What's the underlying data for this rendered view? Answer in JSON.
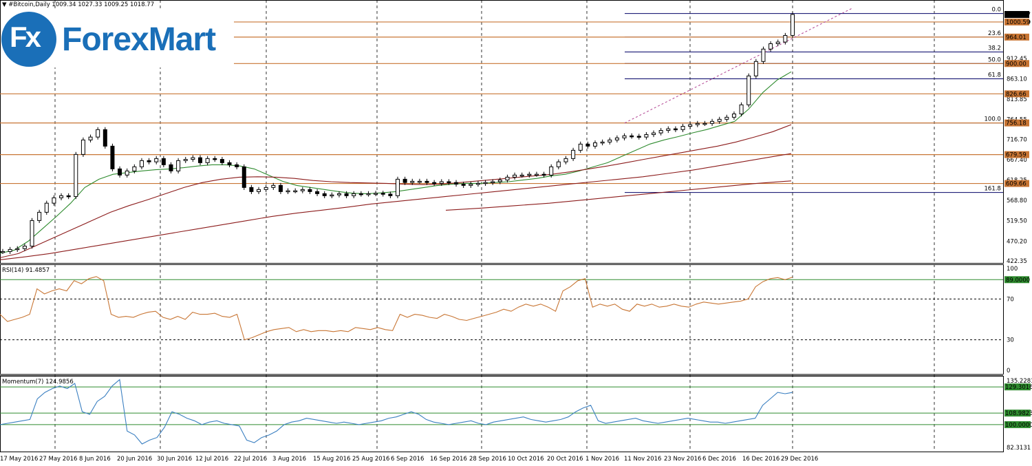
{
  "header": {
    "symbol": "#Bitcoin,Daily",
    "ohlc": "1009.34 1027.33 1009.25 1018.77"
  },
  "logo": {
    "fx": "Fx",
    "name": "ForexMart"
  },
  "chart_data": [
    {
      "type": "candlestick",
      "title": "#Bitcoin,Daily",
      "x_tick_labels": [
        "17 May 2016",
        "27 May 2016",
        "8 Jun 2016",
        "20 Jun 2016",
        "30 Jun 2016",
        "12 Jul 2016",
        "22 Jul 2016",
        "3 Aug 2016",
        "15 Aug 2016",
        "25 Aug 2016",
        "6 Sep 2016",
        "16 Sep 2016",
        "28 Sep 2016",
        "10 Oct 2016",
        "20 Oct 2016",
        "1 Nov 2016",
        "11 Nov 2016",
        "23 Nov 2016",
        "6 Dec 2016",
        "16 Dec 2016",
        "29 Dec 2016"
      ],
      "y_tick_labels": [
        "1018.77",
        "1000.59",
        "964.01",
        "912.45",
        "900.00",
        "863.10",
        "826.66",
        "813.85",
        "764.55",
        "756.18",
        "716.70",
        "679.59",
        "667.40",
        "618.25",
        "609.66",
        "568.80",
        "519.50",
        "470.20",
        "422.35"
      ],
      "ylim": [
        422.35,
        1035
      ],
      "close_values": [
        445,
        450,
        452,
        458,
        520,
        540,
        562,
        575,
        580,
        578,
        680,
        715,
        722,
        740,
        700,
        645,
        630,
        640,
        650,
        665,
        662,
        670,
        655,
        640,
        665,
        668,
        672,
        660,
        670,
        668,
        660,
        655,
        650,
        600,
        590,
        595,
        600,
        605,
        590,
        592,
        592,
        595,
        590,
        585,
        580,
        582,
        585,
        580,
        585,
        584,
        585,
        586,
        584,
        580,
        620,
        612,
        615,
        615,
        612,
        610,
        614,
        612,
        608,
        605,
        608,
        610,
        612,
        614,
        618,
        625,
        630,
        630,
        632,
        632,
        630,
        650,
        662,
        670,
        690,
        705,
        700,
        708,
        710,
        715,
        720,
        725,
        724,
        722,
        728,
        732,
        738,
        742,
        740,
        748,
        752,
        755,
        755,
        760,
        765,
        770,
        778,
        800,
        870,
        905,
        935,
        948,
        952,
        968,
        1018.77
      ],
      "moving_averages": [
        {
          "name": "green",
          "values": [
            441,
            448,
            470,
            500,
            530,
            562,
            600,
            620,
            632,
            636,
            640,
            643,
            645,
            648,
            652,
            655,
            655,
            652,
            645,
            630,
            615,
            605,
            600,
            595,
            590,
            586,
            585,
            587,
            590,
            595,
            600,
            605,
            608,
            610,
            610,
            612,
            614,
            618,
            622,
            628,
            632,
            640,
            650,
            660,
            675,
            690,
            705,
            715,
            723,
            732,
            740,
            750,
            760,
            790,
            830,
            860,
            880
          ]
        },
        {
          "name": "brown",
          "values": [
            430,
            440,
            460,
            480,
            500,
            520,
            540,
            556,
            570,
            585,
            600,
            612,
            620,
            625,
            626,
            625,
            622,
            617,
            614,
            612,
            611,
            610,
            608,
            607,
            608,
            612,
            616,
            620,
            624,
            628,
            632,
            638,
            645,
            652,
            660,
            668,
            676,
            684,
            692,
            700,
            710,
            722,
            735,
            752
          ]
        },
        {
          "name": "dark-red",
          "values": [
            425,
            432,
            440,
            450,
            460,
            470,
            480,
            490,
            500,
            510,
            520,
            530,
            538,
            545,
            552,
            560,
            566,
            572,
            578,
            584,
            590,
            596,
            602,
            608,
            614,
            620,
            626,
            634,
            642,
            652,
            662,
            672,
            682
          ]
        },
        {
          "name": "long-dark-red",
          "values": [
            545,
            550,
            556,
            562,
            570,
            578,
            586,
            594,
            602,
            610,
            616
          ]
        }
      ],
      "horizontal_levels": [
        {
          "label": "1000.59",
          "value": 1000.59,
          "color": "#c87533"
        },
        {
          "label": "964.01",
          "value": 964.01,
          "color": "#c87533"
        },
        {
          "label": "900.00",
          "value": 900.0,
          "color": "#c87533"
        },
        {
          "label": "826.66",
          "value": 826.66,
          "color": "#c87533"
        },
        {
          "label": "756.18",
          "value": 756.18,
          "color": "#c87533"
        },
        {
          "label": "679.59",
          "value": 679.59,
          "color": "#c87533"
        },
        {
          "label": "609.66",
          "value": 609.66,
          "color": "#c87533"
        }
      ],
      "fibonacci_levels": [
        {
          "label": "0.0",
          "value": 1021
        },
        {
          "label": "23.6",
          "value": 964.01
        },
        {
          "label": "38.2",
          "value": 928
        },
        {
          "label": "50.0",
          "value": 900
        },
        {
          "label": "61.8",
          "value": 863.1
        },
        {
          "label": "100.0",
          "value": 756.18
        },
        {
          "label": "161.8",
          "value": 588
        }
      ],
      "price_marker": {
        "label": "1018.77",
        "value": 1018.77
      }
    },
    {
      "type": "line",
      "title": "RSI(14) 91.4857",
      "y_tick_labels": [
        "100",
        "70",
        "30",
        "0"
      ],
      "ylim": [
        0,
        100
      ],
      "levels": [
        {
          "label": "89.0000",
          "value": 89
        }
      ],
      "reference_lines": [
        70,
        30
      ],
      "values": [
        55,
        48,
        50,
        52,
        55,
        80,
        75,
        78,
        80,
        78,
        88,
        85,
        90,
        92,
        88,
        55,
        52,
        53,
        52,
        55,
        57,
        58,
        52,
        50,
        53,
        50,
        57,
        55,
        55,
        56,
        53,
        52,
        55,
        30,
        32,
        35,
        38,
        40,
        41,
        42,
        38,
        40,
        38,
        39,
        39,
        38,
        39,
        38,
        42,
        41,
        40,
        42,
        40,
        39,
        55,
        52,
        55,
        54,
        52,
        51,
        55,
        53,
        50,
        49,
        51,
        53,
        55,
        57,
        60,
        58,
        62,
        65,
        63,
        65,
        62,
        58,
        78,
        82,
        88,
        90,
        62,
        65,
        63,
        65,
        60,
        58,
        65,
        63,
        65,
        62,
        63,
        65,
        63,
        62,
        65,
        67,
        66,
        65,
        66,
        67,
        68,
        70,
        82,
        87,
        90,
        91,
        89,
        91.49
      ]
    },
    {
      "type": "line",
      "title": "Momentum(7) 124.9856",
      "y_tick_labels": [
        "135.2281",
        "129.3016",
        "108.9823",
        "100.0000",
        "82.3131"
      ],
      "ylim": [
        82.3131,
        135.2281
      ],
      "levels": [
        {
          "label": "129.3016",
          "value": 129.3016
        },
        {
          "label": "108.9823",
          "value": 108.9823
        },
        {
          "label": "100.0000",
          "value": 100
        }
      ],
      "values": [
        100,
        101,
        102,
        103,
        104,
        120,
        125,
        128,
        130,
        128,
        132,
        110,
        108,
        118,
        122,
        130,
        135,
        95,
        92,
        85,
        88,
        90,
        98,
        110,
        108,
        105,
        103,
        100,
        102,
        103,
        101,
        100,
        99,
        88,
        86,
        90,
        92,
        95,
        100,
        102,
        103,
        105,
        104,
        103,
        102,
        101,
        102,
        101,
        100,
        101,
        102,
        103,
        105,
        106,
        108,
        110,
        108,
        104,
        102,
        101,
        100,
        101,
        102,
        103,
        101,
        100,
        102,
        103,
        104,
        105,
        106,
        104,
        103,
        102,
        103,
        104,
        106,
        110,
        113,
        115,
        103,
        101,
        102,
        103,
        104,
        105,
        103,
        102,
        101,
        102,
        103,
        104,
        105,
        104,
        103,
        102,
        102,
        101,
        102,
        103,
        104,
        105,
        115,
        120,
        125,
        124,
        125
      ]
    }
  ],
  "colors": {
    "candle": "#000000",
    "ma_green": "#2e8b2e",
    "ma_red": "#8b1a1a",
    "level": "#c87533",
    "fib": "#000066",
    "rsi": "#c87533",
    "momentum": "#3a7fc1",
    "accent": "#1a6fb8"
  }
}
